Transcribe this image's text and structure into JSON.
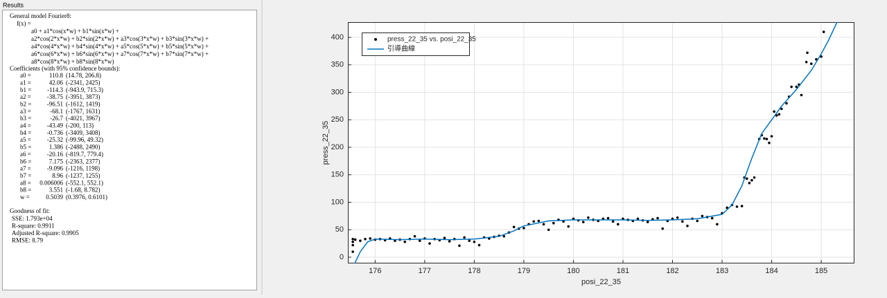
{
  "results": {
    "title": "Results",
    "model": "General model Fourier8:",
    "fx": "f(x) =",
    "formula": [
      "a0 + a1*cos(x*w) + b1*sin(x*w) +",
      "a2*cos(2*x*w) + b2*sin(2*x*w) + a3*cos(3*x*w) + b3*sin(3*x*w) +",
      "a4*cos(4*x*w) + b4*sin(4*x*w) + a5*cos(5*x*w) + b5*sin(5*x*w) +",
      "a6*cos(6*x*w) + b6*sin(6*x*w) + a7*cos(7*x*w) + b7*sin(7*x*w) +",
      "a8*cos(8*x*w) + b8*sin(8*x*w)"
    ],
    "coef_header": "Coefficients (with 95% confidence bounds):",
    "coefficients": [
      [
        "a0 =",
        "110.8",
        "(14.78, 206.8)"
      ],
      [
        "a1 =",
        "42.06",
        "(-2341, 2425)"
      ],
      [
        "b1 =",
        "-114.3",
        "(-943.9, 715.3)"
      ],
      [
        "a2 =",
        "-38.75",
        "(-3951, 3873)"
      ],
      [
        "b2 =",
        "-96.51",
        "(-1612, 1419)"
      ],
      [
        "a3 =",
        "-68.1",
        "(-1767, 1631)"
      ],
      [
        "b3 =",
        "-26.7",
        "(-4021, 3967)"
      ],
      [
        "a4 =",
        "-43.49",
        "(-200, 113)"
      ],
      [
        "b4 =",
        "-0.736",
        "(-3409, 3408)"
      ],
      [
        "a5 =",
        "-25.32",
        "(-99.96, 49.32)"
      ],
      [
        "b5 =",
        "1.386",
        "(-2488, 2490)"
      ],
      [
        "a6 =",
        "-20.16",
        "(-819.7, 779.4)"
      ],
      [
        "b6 =",
        "7.175",
        "(-2363, 2377)"
      ],
      [
        "a7 =",
        "-9.096",
        "(-1216, 1198)"
      ],
      [
        "b7 =",
        "8.96",
        "(-1237, 1255)"
      ],
      [
        "a8 =",
        "0.006006",
        "(-552.1, 552.1)"
      ],
      [
        "b8 =",
        "3.551",
        "(-1.68, 8.782)"
      ],
      [
        "w =",
        "0.5039",
        "(0.3976, 0.6101)"
      ]
    ],
    "gof_header": "Goodness of fit:",
    "gof": [
      "SSE: 1.793e+04",
      "R-square: 0.9911",
      "Adjusted R-square: 0.9905",
      "RMSE: 8.79"
    ]
  },
  "chart_data": {
    "type": "scatter",
    "xlabel": "posi_22_35",
    "ylabel": "press_22_35",
    "xlim": [
      175.45,
      185.67
    ],
    "ylim": [
      -11.3,
      427.7
    ],
    "xticks": [
      176,
      177,
      178,
      179,
      180,
      181,
      182,
      183,
      184,
      185
    ],
    "yticks": [
      0,
      50,
      100,
      150,
      200,
      250,
      300,
      350,
      400
    ],
    "grid": true,
    "legend": "top-left",
    "series": [
      {
        "name": "press_22_35 vs. posi_22_35",
        "color": "#000000",
        "type": "scatter",
        "x": [
          175.55,
          175.55,
          175.55,
          175.55,
          175.6,
          175.7,
          175.8,
          175.9,
          176.0,
          176.1,
          176.2,
          176.3,
          176.4,
          176.5,
          176.6,
          176.7,
          176.8,
          176.9,
          177.0,
          177.1,
          177.2,
          177.3,
          177.4,
          177.5,
          177.6,
          177.7,
          177.8,
          177.9,
          178.0,
          178.1,
          178.2,
          178.3,
          178.4,
          178.5,
          178.6,
          178.7,
          178.8,
          178.9,
          179.0,
          179.1,
          179.2,
          179.3,
          179.4,
          179.5,
          179.6,
          179.7,
          179.8,
          179.9,
          180.0,
          180.1,
          180.2,
          180.3,
          180.4,
          180.5,
          180.6,
          180.7,
          180.8,
          180.9,
          181.0,
          181.1,
          181.2,
          181.3,
          181.4,
          181.5,
          181.6,
          181.7,
          181.8,
          181.9,
          182.0,
          182.1,
          182.2,
          182.3,
          182.4,
          182.5,
          182.6,
          182.7,
          182.8,
          182.9,
          183.0,
          183.1,
          183.2,
          183.3,
          183.4,
          183.45,
          183.5,
          183.55,
          183.6,
          183.65,
          183.75,
          183.8,
          183.85,
          183.9,
          183.95,
          184.0,
          184.05,
          184.1,
          184.15,
          184.2,
          184.3,
          184.35,
          184.4,
          184.5,
          184.55,
          184.6,
          184.7,
          184.72,
          184.8,
          184.9,
          185.0,
          185.05
        ],
        "values": [
          33,
          10,
          22,
          28,
          32,
          30,
          33,
          34,
          32,
          33,
          31,
          34,
          30,
          32,
          28,
          33,
          38,
          30,
          34,
          25,
          33,
          31,
          35,
          29,
          33,
          21,
          36,
          30,
          28,
          22,
          36,
          34,
          37,
          39,
          38,
          45,
          55,
          52,
          53,
          60,
          65,
          66,
          60,
          50,
          62,
          68,
          65,
          56,
          70,
          67,
          64,
          72,
          68,
          66,
          70,
          71,
          65,
          60,
          70,
          68,
          66,
          70,
          67,
          64,
          69,
          71,
          52,
          66,
          70,
          72,
          65,
          57,
          70,
          66,
          75,
          73,
          71,
          60,
          80,
          90,
          95,
          92,
          93,
          145,
          143,
          135,
          140,
          145,
          215,
          222,
          216,
          215,
          208,
          220,
          265,
          258,
          260,
          270,
          280,
          292,
          310,
          310,
          314,
          295,
          355,
          372,
          352,
          360,
          365,
          410
        ]
      },
      {
        "name": "引導曲線",
        "color": "#0072bd",
        "type": "line",
        "x": [
          175.59,
          175.7,
          175.85,
          176.0,
          176.5,
          177.0,
          177.5,
          178.0,
          178.5,
          178.8,
          179.0,
          179.5,
          180.0,
          180.5,
          181.0,
          181.5,
          182.0,
          182.5,
          183.0,
          183.2,
          183.4,
          183.6,
          183.8,
          184.0,
          184.2,
          184.5,
          184.8,
          185.0,
          185.15,
          185.32
        ],
        "values": [
          -11,
          10,
          28,
          33,
          32,
          33,
          32,
          33,
          38,
          48,
          57,
          66,
          68,
          68,
          68,
          67,
          68,
          70,
          78,
          95,
          130,
          180,
          225,
          250,
          275,
          305,
          340,
          370,
          395,
          428
        ]
      }
    ]
  }
}
